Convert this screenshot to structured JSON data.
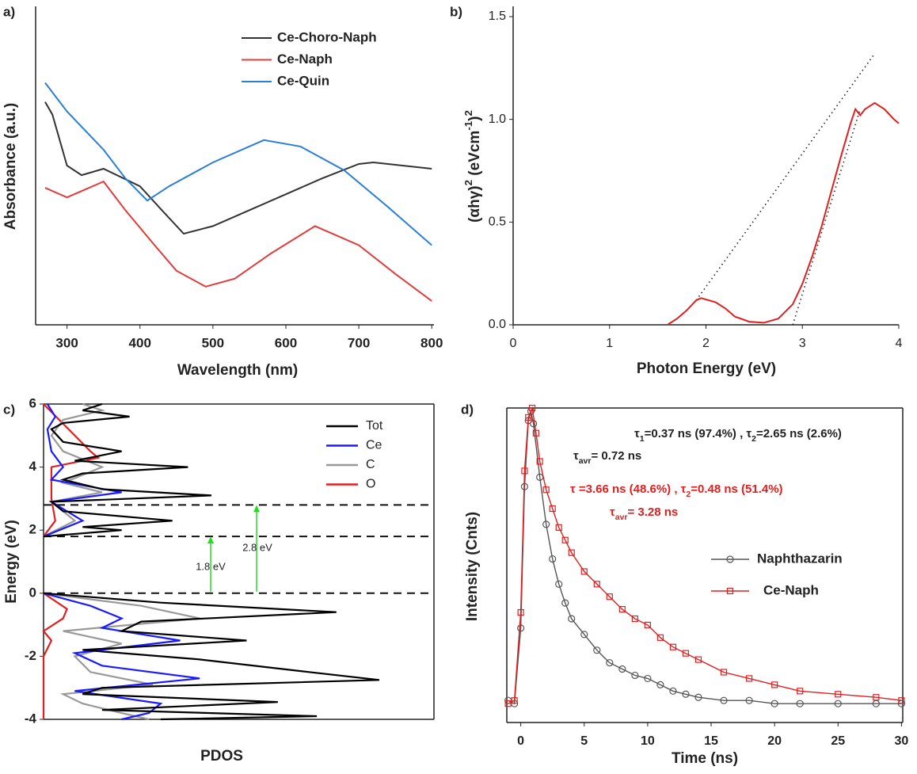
{
  "chart_data": [
    {
      "type": "line",
      "panel_label": "a)",
      "x_label": "Wavelength (nm)",
      "y_label": "Absorbance (a.u.)",
      "xlim": [
        257,
        803
      ],
      "ylim": [
        0,
        1
      ],
      "xticks": [
        300,
        400,
        500,
        600,
        700,
        800
      ],
      "series": [
        {
          "name": "Ce-Choro-Naph",
          "color": "#333333",
          "x": [
            270,
            280,
            300,
            320,
            350,
            400,
            430,
            460,
            500,
            550,
            600,
            650,
            700,
            720,
            760,
            800
          ],
          "values": [
            0.7,
            0.66,
            0.5,
            0.47,
            0.49,
            0.435,
            0.36,
            0.286,
            0.31,
            0.36,
            0.41,
            0.46,
            0.505,
            0.51,
            0.5,
            0.49
          ]
        },
        {
          "name": "Ce-Naph",
          "color": "#e03c3c",
          "x": [
            270,
            300,
            320,
            350,
            380,
            420,
            450,
            490,
            530,
            580,
            640,
            700,
            750,
            800
          ],
          "values": [
            0.43,
            0.4,
            0.42,
            0.45,
            0.36,
            0.25,
            0.17,
            0.12,
            0.145,
            0.225,
            0.31,
            0.25,
            0.16,
            0.075
          ]
        },
        {
          "name": "Ce-Quin",
          "color": "#2a7fd4",
          "x": [
            270,
            300,
            350,
            380,
            410,
            440,
            500,
            570,
            620,
            680,
            740,
            800
          ],
          "values": [
            0.76,
            0.67,
            0.55,
            0.46,
            0.39,
            0.435,
            0.51,
            0.58,
            0.56,
            0.485,
            0.37,
            0.25
          ]
        }
      ]
    },
    {
      "type": "line",
      "panel_label": "b)",
      "x_label": "Photon Energy (eV)",
      "y_label": [
        {
          "t": "(αhγ)"
        },
        {
          "t": "2",
          "sup": true
        },
        {
          "t": " (eVcm"
        },
        {
          "t": "-1",
          "sup": true
        },
        {
          "t": ")"
        },
        {
          "t": "2",
          "sup": true
        }
      ],
      "xlim": [
        0,
        4
      ],
      "ylim": [
        0,
        1.55
      ],
      "xticks": [
        0,
        1,
        2,
        3,
        4
      ],
      "yticks": [
        {
          "value": 0,
          "label": "0.0"
        },
        0.5,
        {
          "value": 1,
          "label": "1.0"
        },
        1.5
      ],
      "series": [
        {
          "color": "#e02020",
          "x": [
            1.6,
            1.7,
            1.8,
            1.9,
            1.95,
            2.1,
            2.2,
            2.3,
            2.45,
            2.6,
            2.75,
            2.9,
            3.0,
            3.1,
            3.2,
            3.3,
            3.4,
            3.5,
            3.55,
            3.6,
            3.65,
            3.75,
            3.85,
            3.95,
            4.0
          ],
          "values": [
            0,
            0.03,
            0.07,
            0.12,
            0.13,
            0.11,
            0.08,
            0.04,
            0.015,
            0.01,
            0.03,
            0.1,
            0.2,
            0.33,
            0.48,
            0.65,
            0.82,
            0.98,
            1.05,
            1.02,
            1.05,
            1.08,
            1.05,
            1.0,
            0.98
          ]
        }
      ],
      "fit_lines": [
        {
          "x": [
            1.9,
            3.75
          ],
          "y": [
            0.12,
            1.32
          ]
        },
        {
          "x": [
            2.9,
            3.6
          ],
          "y": [
            0,
            1.05
          ]
        }
      ]
    },
    {
      "type": "pdos",
      "panel_label": "c)",
      "x_label": "PDOS",
      "y_label": "Energy (eV)",
      "frame": true,
      "xlim": [
        0,
        1
      ],
      "ylim": [
        -4,
        6
      ],
      "yticks": [
        -4,
        -2,
        0,
        2,
        4,
        6
      ],
      "hlines": [
        2.8,
        1.8,
        0
      ],
      "arrows": [
        {
          "value": 1.8,
          "label": "1.8 eV"
        },
        {
          "value": 2.8,
          "label": "2.8 eV"
        }
      ],
      "arrow_color": "#22dd22",
      "series": [
        {
          "name": "Tot",
          "color": "#000000",
          "energy": [
            6,
            5.8,
            5.6,
            5.4,
            5.2,
            4.8,
            4.5,
            4.2,
            4.0,
            3.8,
            3.6,
            3.3,
            3.1,
            2.9,
            2.6,
            2.3,
            2.1,
            2.0,
            1.8,
            1.0,
            0,
            -0.3,
            -0.6,
            -0.9,
            -1.2,
            -1.5,
            -1.8,
            -2.1,
            -2.5,
            -2.75,
            -3.0,
            -3.2,
            -3.45,
            -3.7,
            -3.9,
            -4.0
          ],
          "values": [
            0.15,
            0.1,
            0.22,
            0.05,
            0.02,
            0.05,
            0.2,
            0.08,
            0.37,
            0.1,
            0.05,
            0.15,
            0.43,
            0.02,
            0.05,
            0.33,
            0.1,
            0.2,
            0.0,
            null,
            0.0,
            0.3,
            0.75,
            0.25,
            0.2,
            0.52,
            0.1,
            0.4,
            0.68,
            0.86,
            0.15,
            0.1,
            0.6,
            0.15,
            0.7,
            0.3
          ]
        },
        {
          "name": "Ce",
          "color": "#1a1aff",
          "energy": [
            6,
            5.6,
            5.2,
            4.5,
            4.0,
            3.6,
            3.2,
            2.9,
            2.3,
            1.8,
            1.0,
            0,
            -0.4,
            -0.8,
            -1.1,
            -1.5,
            -1.9,
            -2.3,
            -2.7,
            -3.1,
            -3.5,
            -3.8,
            -4.0
          ],
          "values": [
            0.01,
            0.03,
            0.01,
            0.02,
            0.05,
            0.02,
            0.2,
            0.02,
            0.1,
            0.0,
            null,
            0.0,
            0.12,
            0.2,
            0.15,
            0.35,
            0.08,
            0.15,
            0.4,
            0.08,
            0.3,
            0.27,
            0.2
          ]
        },
        {
          "name": "C",
          "color": "#999999",
          "energy": [
            6,
            5.8,
            5.5,
            5.0,
            4.5,
            4.0,
            3.5,
            3.2,
            2.9,
            2.3,
            1.8,
            1.0,
            0,
            -0.4,
            -0.8,
            -1.2,
            -1.6,
            -2.0,
            -2.5,
            -2.9,
            -3.2,
            -3.5,
            -3.8,
            -4.0
          ],
          "values": [
            0.1,
            0.15,
            0.05,
            0.02,
            0.05,
            0.15,
            0.05,
            0.15,
            0.02,
            0.08,
            0.0,
            null,
            0.0,
            0.25,
            0.4,
            0.05,
            0.2,
            0.08,
            0.12,
            0.28,
            0.05,
            0.1,
            0.2,
            0.27
          ]
        },
        {
          "name": "O",
          "color": "#e02020",
          "energy": [
            6,
            4.5,
            4.3,
            4.0,
            3.0,
            2.3,
            1.8,
            1.0,
            0,
            -0.5,
            -0.8,
            -1.2,
            -1.5,
            -2,
            -3,
            -4
          ],
          "values": [
            0.0,
            0.12,
            0.14,
            0.02,
            0.02,
            0.03,
            0.0,
            null,
            0.0,
            0.06,
            0.05,
            0.0,
            0.02,
            0.0,
            0.0,
            0.0
          ]
        }
      ]
    },
    {
      "type": "decay",
      "panel_label": "d)",
      "x_label": "Time (ns)",
      "y_label": "Intensity (Cnts)",
      "frame": true,
      "xlim": [
        -1.1,
        30.1
      ],
      "ylim": [
        0,
        1
      ],
      "xticks": [
        0,
        5,
        10,
        15,
        20,
        25,
        30
      ],
      "series": [
        {
          "name": "Naphthazarin",
          "color": "#555555",
          "marker": "circle",
          "x": [
            -1,
            -0.5,
            0,
            0.3,
            0.6,
            0.8,
            1,
            1.5,
            2,
            2.5,
            3,
            3.5,
            4,
            5,
            6,
            7,
            8,
            9,
            10,
            11,
            12,
            13,
            14,
            16,
            18,
            20,
            22,
            25,
            28,
            30
          ],
          "values": [
            0.07,
            0.06,
            0.3,
            0.75,
            0.96,
            0.99,
            0.95,
            0.78,
            0.63,
            0.52,
            0.44,
            0.38,
            0.33,
            0.28,
            0.23,
            0.19,
            0.17,
            0.15,
            0.14,
            0.12,
            0.1,
            0.09,
            0.08,
            0.07,
            0.07,
            0.06,
            0.06,
            0.06,
            0.06,
            0.06
          ]
        },
        {
          "name": "Ce-Naph",
          "color": "#e02020",
          "marker": "square",
          "x": [
            -1,
            -0.5,
            0,
            0.3,
            0.6,
            0.9,
            1.2,
            1.5,
            2,
            2.5,
            3,
            3.5,
            4,
            5,
            6,
            7,
            8,
            9,
            10,
            11,
            12,
            13,
            14,
            16,
            18,
            20,
            22,
            25,
            28,
            30
          ],
          "values": [
            0.06,
            0.07,
            0.35,
            0.8,
            0.97,
            1.0,
            0.92,
            0.83,
            0.74,
            0.68,
            0.62,
            0.58,
            0.54,
            0.48,
            0.44,
            0.4,
            0.36,
            0.33,
            0.31,
            0.27,
            0.24,
            0.22,
            0.2,
            0.16,
            0.14,
            0.12,
            0.1,
            0.09,
            0.08,
            0.07
          ]
        }
      ],
      "annotations": [
        {
          "color": "#222222",
          "segments": [
            {
              "t": "τ"
            },
            {
              "t": "1",
              "sub": true
            },
            {
              "t": "=0.37 ns (97.4%) , τ"
            },
            {
              "t": "2",
              "sub": true
            },
            {
              "t": "=2.65 ns (2.6%)"
            }
          ]
        },
        {
          "color": "#222222",
          "segments": [
            {
              "t": "τ"
            },
            {
              "t": "avr",
              "sub": true
            },
            {
              "t": "= 0.72 ns"
            }
          ]
        },
        {
          "color": "#e02020",
          "segments": [
            {
              "t": "τ =3.66 ns (48.6%) , τ"
            },
            {
              "t": "2",
              "sub": true
            },
            {
              "t": "=0.48 ns (51.4%)"
            }
          ]
        },
        {
          "color": "#e02020",
          "segments": [
            {
              "t": "τ"
            },
            {
              "t": "avr",
              "sub": true
            },
            {
              "t": "= 3.28 ns"
            }
          ]
        }
      ]
    }
  ]
}
